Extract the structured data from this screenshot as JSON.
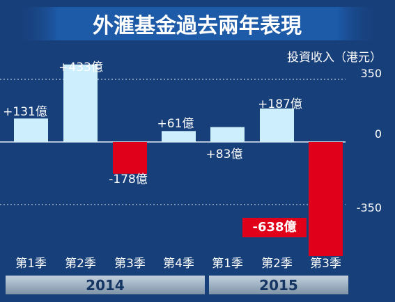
{
  "chart_data": {
    "type": "bar",
    "title": "外滙基金過去兩年表現",
    "ylabel": "投資收入（港元）",
    "ylim": [
      -638,
      433
    ],
    "yticks": [
      {
        "value": 350,
        "label": "350"
      },
      {
        "value": 0,
        "label": "0"
      },
      {
        "value": -350,
        "label": "-350"
      }
    ],
    "groups": [
      {
        "label": "2014",
        "categories": [
          "第1季",
          "第2季",
          "第3季",
          "第4季"
        ]
      },
      {
        "label": "2015",
        "categories": [
          "第1季",
          "第2季",
          "第3季"
        ]
      }
    ],
    "categories": [
      "第1季",
      "第2季",
      "第3季",
      "第4季",
      "第1季",
      "第2季",
      "第3季"
    ],
    "values": [
      131,
      433,
      -178,
      61,
      83,
      187,
      -638
    ],
    "value_labels": [
      "+131億",
      "+433億",
      "-178億",
      "+61億",
      "+83億",
      "+187億",
      "-638億"
    ],
    "colors": {
      "positive": "#cdeefc",
      "negative": "#e1001a",
      "background": "#173f7a",
      "year_band": "#9fb2c4"
    }
  }
}
